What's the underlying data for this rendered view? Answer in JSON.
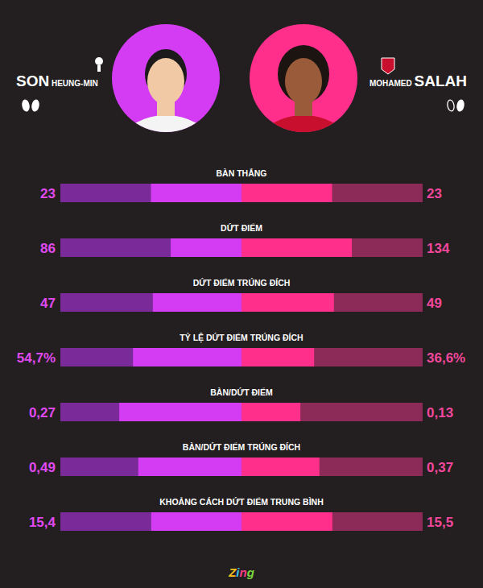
{
  "chart_data": {
    "type": "bar",
    "orientation": "horizontal",
    "data_labels": true,
    "categories": [
      "BÀN THẮNG",
      "DỨT ĐIỂM",
      "DỨT ĐIỂM TRÚNG ĐÍCH",
      "TỶ LỆ DỨT ĐIỂM TRÚNG ĐÍCH",
      "BÀN/DỨT ĐIỂM",
      "BÀN/DỨT ĐIỂM TRÚNG ĐÍCH",
      "KHOẢNG CÁCH DỨT ĐIỂM TRUNG BÌNH"
    ],
    "series": [
      {
        "name": "SON HEUNG-MIN",
        "color": "#d33cf2",
        "values": [
          23,
          86,
          47,
          54.7,
          0.27,
          0.49,
          15.4
        ],
        "value_labels": [
          "23",
          "86",
          "47",
          "54,7%",
          "0,27",
          "0,49",
          "15,4"
        ]
      },
      {
        "name": "MOHAMED SALAH",
        "color": "#ff2f8b",
        "values": [
          23,
          134,
          49,
          36.6,
          0.13,
          0.37,
          15.5
        ],
        "value_labels": [
          "23",
          "134",
          "49",
          "36,6%",
          "0,13",
          "0,37",
          "15,5"
        ]
      }
    ],
    "source": "Zing"
  }
}
